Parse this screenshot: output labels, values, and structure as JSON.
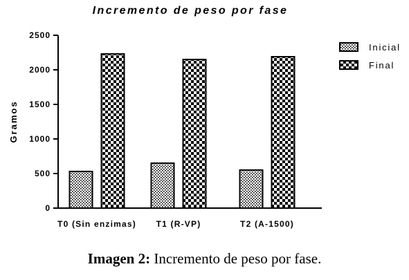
{
  "chart_data": {
    "type": "bar",
    "title": "Incremento de peso por fase",
    "xlabel": "",
    "ylabel": "Gramos",
    "ylim": [
      0,
      2500
    ],
    "yticks": [
      "0",
      "500",
      "1000",
      "1500",
      "2000",
      "2500"
    ],
    "categories": [
      "T0 (Sin enzimas)",
      "T1 (R-VP)",
      "T2 (A-1500)"
    ],
    "series": [
      {
        "name": "Inicial",
        "values": [
          530,
          650,
          550
        ]
      },
      {
        "name": "Final",
        "values": [
          2230,
          2150,
          2190
        ]
      }
    ],
    "legend_position": "top-right",
    "grid": false
  },
  "caption": {
    "label": "Imagen 2:",
    "text": " Incremento de peso por fase."
  }
}
